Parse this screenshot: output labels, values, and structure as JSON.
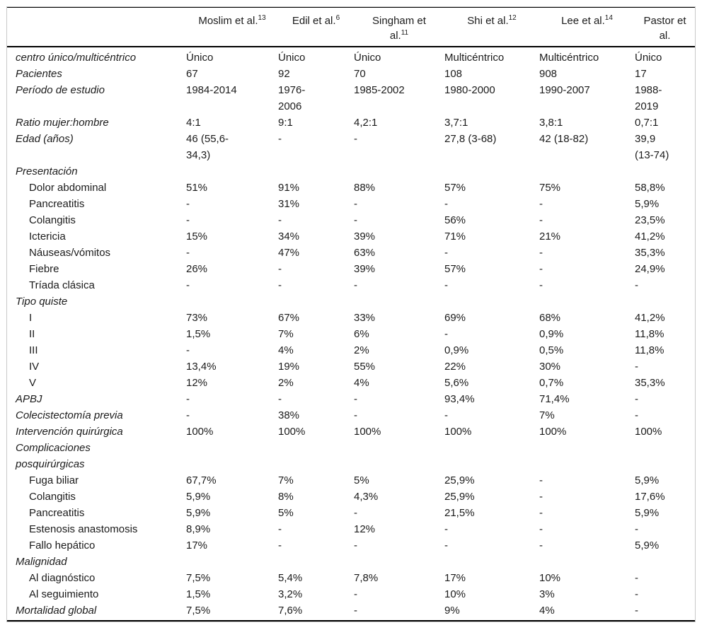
{
  "table": {
    "columns": [
      {
        "label": "Moslim et al.",
        "ref": "13"
      },
      {
        "label": "Edil et al.",
        "ref": "6"
      },
      {
        "label": "Singham et al.",
        "ref": "11"
      },
      {
        "label": "Shi et al.",
        "ref": "12"
      },
      {
        "label": "Lee et al.",
        "ref": "14"
      },
      {
        "label": "Pastor et al.",
        "ref": ""
      }
    ],
    "rows": [
      {
        "label": "centro único/multicéntrico",
        "type": "main",
        "values": [
          "Único",
          "Único",
          "Único",
          "Multicéntrico",
          "Multicéntrico",
          "Único"
        ]
      },
      {
        "label": "Pacientes",
        "type": "main",
        "values": [
          "67",
          "92",
          "70",
          "108",
          "908",
          "17"
        ]
      },
      {
        "label": "Período de estudio",
        "type": "main",
        "values": [
          "1984-2014",
          "1976-\n2006",
          "1985-2002",
          "1980-2000",
          "1990-2007",
          "1988-\n2019"
        ]
      },
      {
        "label": "Ratio mujer:hombre",
        "type": "main",
        "values": [
          "4:1",
          "9:1",
          "4,2:1",
          "3,7:1",
          "3,8:1",
          "0,7:1"
        ]
      },
      {
        "label": "Edad (años)",
        "type": "main",
        "values": [
          "46 (55,6-\n34,3)",
          "-",
          "-",
          "27,8 (3-68)",
          "42 (18-82)",
          "39,9\n(13-74)"
        ]
      },
      {
        "label": "Presentación",
        "type": "main",
        "values": [
          "",
          "",
          "",
          "",
          "",
          ""
        ]
      },
      {
        "label": "Dolor abdominal",
        "type": "sub",
        "values": [
          "51%",
          "91%",
          "88%",
          "57%",
          "75%",
          "58,8%"
        ]
      },
      {
        "label": "Pancreatitis",
        "type": "sub",
        "values": [
          "-",
          "31%",
          "-",
          "-",
          "-",
          "5,9%"
        ]
      },
      {
        "label": "Colangitis",
        "type": "sub",
        "values": [
          "-",
          "-",
          "-",
          "56%",
          "-",
          "23,5%"
        ]
      },
      {
        "label": "Ictericia",
        "type": "sub",
        "values": [
          "15%",
          "34%",
          "39%",
          "71%",
          "21%",
          "41,2%"
        ]
      },
      {
        "label": "Náuseas/vómitos",
        "type": "sub",
        "values": [
          "-",
          "47%",
          "63%",
          "-",
          "-",
          "35,3%"
        ]
      },
      {
        "label": "Fiebre",
        "type": "sub",
        "values": [
          "26%",
          "-",
          "39%",
          "57%",
          "-",
          "24,9%"
        ]
      },
      {
        "label": "Tríada clásica",
        "type": "sub",
        "values": [
          "-",
          "-",
          "-",
          "-",
          "-",
          "-"
        ]
      },
      {
        "label": "Tipo quiste",
        "type": "main",
        "values": [
          "",
          "",
          "",
          "",
          "",
          ""
        ]
      },
      {
        "label": "I",
        "type": "sub",
        "values": [
          "73%",
          "67%",
          "33%",
          "69%",
          "68%",
          "41,2%"
        ]
      },
      {
        "label": "II",
        "type": "sub",
        "values": [
          "1,5%",
          "7%",
          "6%",
          "-",
          "0,9%",
          "11,8%"
        ]
      },
      {
        "label": "III",
        "type": "sub",
        "values": [
          "-",
          "4%",
          "2%",
          "0,9%",
          "0,5%",
          "11,8%"
        ]
      },
      {
        "label": "IV",
        "type": "sub",
        "values": [
          "13,4%",
          "19%",
          "55%",
          "22%",
          "30%",
          "-"
        ]
      },
      {
        "label": "V",
        "type": "sub",
        "values": [
          "12%",
          "2%",
          "4%",
          "5,6%",
          "0,7%",
          "35,3%"
        ]
      },
      {
        "label": "APBJ",
        "type": "main",
        "values": [
          "-",
          "-",
          "-",
          "93,4%",
          "71,4%",
          "-"
        ]
      },
      {
        "label": "Colecistectomía previa",
        "type": "main",
        "values": [
          "-",
          "38%",
          "-",
          "-",
          "7%",
          "-"
        ]
      },
      {
        "label": "Intervención quirúrgica",
        "type": "main",
        "values": [
          "100%",
          "100%",
          "100%",
          "100%",
          "100%",
          "100%"
        ]
      },
      {
        "label": "Complicaciones\nposquirúrgicas",
        "type": "main",
        "values": [
          "",
          "",
          "",
          "",
          "",
          ""
        ]
      },
      {
        "label": "Fuga biliar",
        "type": "sub",
        "values": [
          "67,7%",
          "7%",
          "5%",
          "25,9%",
          "-",
          "5,9%"
        ]
      },
      {
        "label": "Colangitis",
        "type": "sub",
        "values": [
          "5,9%",
          "8%",
          "4,3%",
          "25,9%",
          "-",
          "17,6%"
        ]
      },
      {
        "label": "Pancreatitis",
        "type": "sub",
        "values": [
          "5,9%",
          "5%",
          "-",
          "21,5%",
          "-",
          "5,9%"
        ]
      },
      {
        "label": "Estenosis anastomosis",
        "type": "sub",
        "values": [
          "8,9%",
          "-",
          "12%",
          "-",
          "-",
          "-"
        ]
      },
      {
        "label": "Fallo hepático",
        "type": "sub",
        "values": [
          "17%",
          "-",
          "-",
          "-",
          "-",
          "5,9%"
        ]
      },
      {
        "label": "Malignidad",
        "type": "main",
        "values": [
          "",
          "",
          "",
          "",
          "",
          ""
        ]
      },
      {
        "label": "Al diagnóstico",
        "type": "sub",
        "values": [
          "7,5%",
          "5,4%",
          "7,8%",
          "17%",
          "10%",
          "-"
        ]
      },
      {
        "label": "Al seguimiento",
        "type": "sub",
        "values": [
          "1,5%",
          "3,2%",
          "-",
          "10%",
          "3%",
          "-"
        ]
      },
      {
        "label": "Mortalidad global",
        "type": "main",
        "values": [
          "7,5%",
          "7,6%",
          "-",
          "9%",
          "4%",
          "-"
        ]
      }
    ]
  }
}
